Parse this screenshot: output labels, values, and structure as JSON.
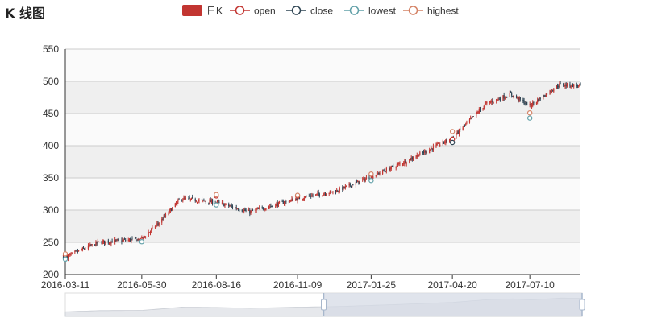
{
  "title": "K 线图",
  "legend": {
    "items": [
      {
        "label": "日K",
        "symbol": "rect",
        "color": "#c23531"
      },
      {
        "label": "open",
        "symbol": "circle",
        "color": "#c23531"
      },
      {
        "label": "close",
        "symbol": "circle",
        "color": "#2f4554"
      },
      {
        "label": "lowest",
        "symbol": "circle",
        "color": "#61a0a8"
      },
      {
        "label": "highest",
        "symbol": "circle",
        "color": "#d48265"
      }
    ]
  },
  "colors": {
    "up": "#c23531",
    "down": "#2f4554",
    "grid_band": "#efefef",
    "grid_line": "#cccccc",
    "dataZoom_fill": "#d5dbe6",
    "dataZoom_handle": "#a7b7cc"
  },
  "chart_data": {
    "type": "candlestick",
    "title": "K 线图",
    "x_tick_labels": [
      "2016-03-11",
      "2016-05-30",
      "2016-08-16",
      "2016-11-09",
      "2017-01-25",
      "2017-04-20",
      "2017-07-10"
    ],
    "ylim": [
      200,
      550
    ],
    "y_ticks": [
      200,
      250,
      300,
      350,
      400,
      450,
      500,
      550
    ],
    "grid": "alternating horizontal bands",
    "legend_position": "top-center",
    "dataZoom": {
      "start_percent": 50,
      "end_percent": 100
    },
    "trend": [
      {
        "x": "2016-03-11",
        "close": 227
      },
      {
        "x": "2016-04-15",
        "close": 250
      },
      {
        "x": "2016-05-30",
        "close": 255
      },
      {
        "x": "2016-06-20",
        "close": 285
      },
      {
        "x": "2016-07-10",
        "close": 318
      },
      {
        "x": "2016-08-16",
        "close": 312
      },
      {
        "x": "2016-09-20",
        "close": 297
      },
      {
        "x": "2016-11-09",
        "close": 318
      },
      {
        "x": "2016-12-20",
        "close": 330
      },
      {
        "x": "2017-01-25",
        "close": 352
      },
      {
        "x": "2017-03-01",
        "close": 375
      },
      {
        "x": "2017-04-20",
        "close": 412
      },
      {
        "x": "2017-05-25",
        "close": 465
      },
      {
        "x": "2017-06-20",
        "close": 480
      },
      {
        "x": "2017-07-10",
        "close": 462
      },
      {
        "x": "2017-08-10",
        "close": 495
      },
      {
        "x": "2017-09-01",
        "close": 493
      }
    ],
    "markers": {
      "open": [
        {
          "x": "2016-03-11",
          "y": 229
        },
        {
          "x": "2016-05-30",
          "y": 253
        },
        {
          "x": "2016-08-16",
          "y": 322
        },
        {
          "x": "2016-11-09",
          "y": 322
        },
        {
          "x": "2017-04-20",
          "y": 410
        }
      ],
      "close": [
        {
          "x": "2016-03-11",
          "y": 226
        },
        {
          "x": "2017-04-20",
          "y": 405
        }
      ],
      "lowest": [
        {
          "x": "2016-03-11",
          "y": 224
        },
        {
          "x": "2016-05-30",
          "y": 251
        },
        {
          "x": "2016-08-16",
          "y": 308
        },
        {
          "x": "2017-01-25",
          "y": 346
        },
        {
          "x": "2017-07-10",
          "y": 443
        }
      ],
      "highest": [
        {
          "x": "2016-03-11",
          "y": 232
        },
        {
          "x": "2016-08-16",
          "y": 324
        },
        {
          "x": "2016-11-09",
          "y": 323
        },
        {
          "x": "2017-01-25",
          "y": 356
        },
        {
          "x": "2017-04-20",
          "y": 422
        },
        {
          "x": "2017-07-10",
          "y": 451
        }
      ]
    }
  }
}
